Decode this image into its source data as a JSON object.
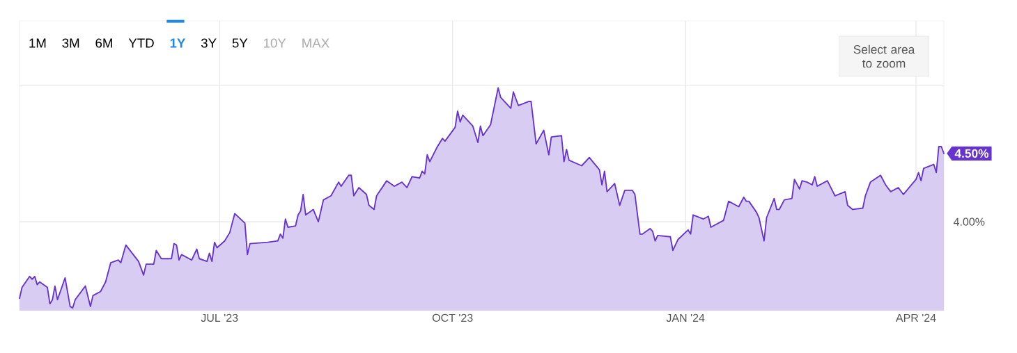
{
  "chart_data": {
    "type": "area",
    "color": "#6633cc",
    "x": [
      "2023-04-13",
      "2023-04-14",
      "2023-04-17",
      "2023-04-18",
      "2023-04-19",
      "2023-04-20",
      "2023-04-21",
      "2023-04-24",
      "2023-04-25",
      "2023-04-26",
      "2023-04-27",
      "2023-04-28",
      "2023-05-01",
      "2023-05-03",
      "2023-05-04",
      "2023-05-05",
      "2023-05-09",
      "2023-05-11",
      "2023-05-12",
      "2023-05-15",
      "2023-05-17",
      "2023-05-19",
      "2023-05-22",
      "2023-05-23",
      "2023-05-25",
      "2023-05-30",
      "2023-06-01",
      "2023-06-02",
      "2023-06-05",
      "2023-06-06",
      "2023-06-08",
      "2023-06-12",
      "2023-06-13",
      "2023-06-14",
      "2023-06-15",
      "2023-06-16",
      "2023-06-20",
      "2023-06-22",
      "2023-06-23",
      "2023-06-26",
      "2023-06-27",
      "2023-06-28",
      "2023-06-29",
      "2023-06-30",
      "2023-07-03",
      "2023-07-05",
      "2023-07-07",
      "2023-07-11",
      "2023-07-12",
      "2023-07-13",
      "2023-07-20",
      "2023-07-24",
      "2023-07-25",
      "2023-07-26",
      "2023-07-27",
      "2023-07-28",
      "2023-07-31",
      "2023-08-01",
      "2023-08-02",
      "2023-08-03",
      "2023-08-04",
      "2023-08-07",
      "2023-08-09",
      "2023-08-11",
      "2023-08-14",
      "2023-08-17",
      "2023-08-18",
      "2023-08-21",
      "2023-08-22",
      "2023-08-23",
      "2023-08-25",
      "2023-08-28",
      "2023-08-29",
      "2023-08-31",
      "2023-09-01",
      "2023-09-05",
      "2023-09-08",
      "2023-09-11",
      "2023-09-13",
      "2023-09-15",
      "2023-09-18",
      "2023-09-19",
      "2023-09-20",
      "2023-09-21",
      "2023-09-22",
      "2023-09-25",
      "2023-09-27",
      "2023-09-28",
      "2023-10-02",
      "2023-10-03",
      "2023-10-04",
      "2023-10-05",
      "2023-10-09",
      "2023-10-11",
      "2023-10-12",
      "2023-10-13",
      "2023-10-16",
      "2023-10-19",
      "2023-10-20",
      "2023-10-24",
      "2023-10-25",
      "2023-10-27",
      "2023-10-31",
      "2023-11-01",
      "2023-11-03",
      "2023-11-06",
      "2023-11-08",
      "2023-11-09",
      "2023-11-13",
      "2023-11-14",
      "2023-11-15",
      "2023-11-16",
      "2023-11-21",
      "2023-11-24",
      "2023-11-28",
      "2023-11-29",
      "2023-11-30",
      "2023-12-01",
      "2023-12-04",
      "2023-12-06",
      "2023-12-08",
      "2023-12-11",
      "2023-12-12",
      "2023-12-14",
      "2023-12-15",
      "2023-12-18",
      "2023-12-19",
      "2023-12-20",
      "2023-12-21",
      "2023-12-26",
      "2023-12-27",
      "2023-12-29",
      "2024-01-02",
      "2024-01-03",
      "2024-01-04",
      "2024-01-08",
      "2024-01-10",
      "2024-01-11",
      "2024-01-16",
      "2024-01-18",
      "2024-01-22",
      "2024-01-24",
      "2024-01-25",
      "2024-01-26",
      "2024-01-29",
      "2024-01-30",
      "2024-02-01",
      "2024-02-02",
      "2024-02-05",
      "2024-02-06",
      "2024-02-07",
      "2024-02-09",
      "2024-02-12",
      "2024-02-13",
      "2024-02-15",
      "2024-02-16",
      "2024-02-18",
      "2024-02-20",
      "2024-02-21",
      "2024-02-22",
      "2024-02-26",
      "2024-02-29",
      "2024-03-04",
      "2024-03-05",
      "2024-03-07",
      "2024-03-11",
      "2024-03-12",
      "2024-03-14",
      "2024-03-18",
      "2024-03-20",
      "2024-03-22",
      "2024-03-25",
      "2024-03-27",
      "2024-04-01",
      "2024-04-02",
      "2024-04-03",
      "2024-04-04",
      "2024-04-08",
      "2024-04-09",
      "2024-04-10",
      "2024-04-11",
      "2024-04-12"
    ],
    "values": [
      3.44,
      3.52,
      3.6,
      3.58,
      3.6,
      3.54,
      3.56,
      3.52,
      3.4,
      3.43,
      3.53,
      3.43,
      3.59,
      3.38,
      3.37,
      3.43,
      3.53,
      3.38,
      3.46,
      3.49,
      3.56,
      3.7,
      3.72,
      3.7,
      3.83,
      3.71,
      3.61,
      3.69,
      3.69,
      3.79,
      3.73,
      3.73,
      3.84,
      3.83,
      3.72,
      3.76,
      3.72,
      3.8,
      3.73,
      3.71,
      3.77,
      3.71,
      3.85,
      3.81,
      3.86,
      3.92,
      4.06,
      3.99,
      3.76,
      3.84,
      3.85,
      3.86,
      3.91,
      3.88,
      4.02,
      3.96,
      3.97,
      4.05,
      4.08,
      4.2,
      4.05,
      4.09,
      4.0,
      4.16,
      4.19,
      4.29,
      4.26,
      4.34,
      4.34,
      4.19,
      4.25,
      4.2,
      4.12,
      4.09,
      4.19,
      4.3,
      4.26,
      4.29,
      4.25,
      4.33,
      4.32,
      4.37,
      4.35,
      4.49,
      4.44,
      4.55,
      4.61,
      4.59,
      4.69,
      4.81,
      4.73,
      4.78,
      4.7,
      4.58,
      4.7,
      4.63,
      4.71,
      4.98,
      4.91,
      4.83,
      4.95,
      4.85,
      4.88,
      4.88,
      4.57,
      4.67,
      4.49,
      4.62,
      4.63,
      4.44,
      4.53,
      4.45,
      4.41,
      4.47,
      4.38,
      4.27,
      4.37,
      4.22,
      4.28,
      4.12,
      4.23,
      4.23,
      4.2,
      3.91,
      3.91,
      3.95,
      3.93,
      3.86,
      3.9,
      3.89,
      3.79,
      3.87,
      3.94,
      3.91,
      4.05,
      4.02,
      4.04,
      3.96,
      4.01,
      4.15,
      4.11,
      4.18,
      4.15,
      4.15,
      4.07,
      4.03,
      3.86,
      4.03,
      4.17,
      4.09,
      4.09,
      4.16,
      4.17,
      4.31,
      4.24,
      4.3,
      4.29,
      4.27,
      4.33,
      4.26,
      4.3,
      4.19,
      4.22,
      4.12,
      4.09,
      4.1,
      4.19,
      4.29,
      4.34,
      4.27,
      4.22,
      4.25,
      4.2,
      4.31,
      4.36,
      4.3,
      4.39,
      4.42,
      4.36,
      4.55,
      4.55,
      4.5
    ],
    "xlim": [
      "2023-04-13",
      "2024-04-12"
    ],
    "ylim": [
      3.35,
      5.47
    ],
    "xticks": [
      {
        "value": "2023-07-01",
        "label": "JUL '23"
      },
      {
        "value": "2023-10-01",
        "label": "OCT '23"
      },
      {
        "value": "2024-01-01",
        "label": "JAN '24"
      },
      {
        "value": "2024-04-01",
        "label": "APR '24"
      }
    ],
    "yticks": [
      {
        "value": 4,
        "label": "4.00%"
      },
      {
        "value": 4.5,
        "label": "4.50%"
      },
      {
        "value": 5,
        "label": null
      }
    ],
    "grid": true,
    "annotations": [
      "1M",
      "3M",
      "6M",
      "YTD",
      "1Y",
      "3Y",
      "5Y",
      "10Y",
      "MAX",
      "Select area to zoom"
    ]
  }
}
